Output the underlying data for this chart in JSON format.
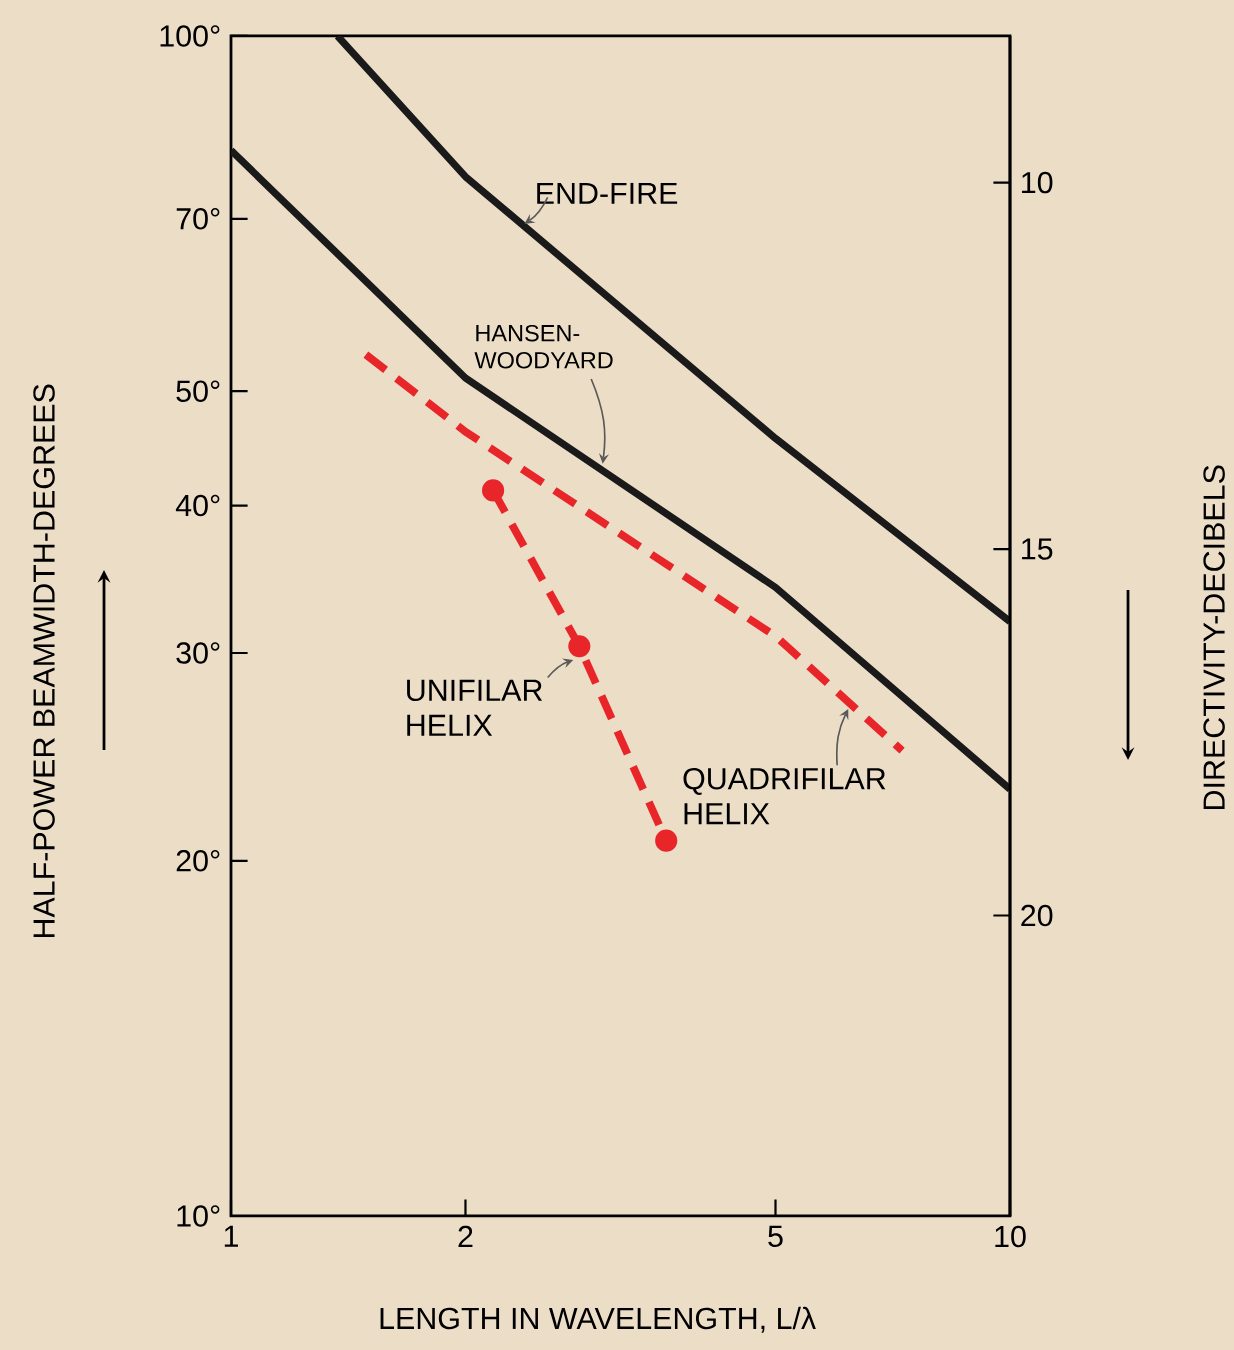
{
  "chart_data": {
    "type": "line",
    "xlabel": "LENGTH IN WAVELENGTH, L/λ",
    "ylabel": "HALF-POWER BEAMWIDTH-DEGREES",
    "y2label": "DIRECTIVITY-DECIBELS",
    "log": "xy",
    "xlim": [
      1,
      10
    ],
    "ylim": [
      10,
      100
    ],
    "xticks": [
      1,
      2,
      5,
      10
    ],
    "yticks": [
      {
        "value": 10,
        "label": "10°"
      },
      {
        "value": 20,
        "label": "20°"
      },
      {
        "value": 30,
        "label": "30°"
      },
      {
        "value": 40,
        "label": "40°"
      },
      {
        "value": 50,
        "label": "50°"
      },
      {
        "value": 70,
        "label": "70°"
      },
      {
        "value": 100,
        "label": "100°"
      }
    ],
    "y2lim": [
      24.1,
      8.0
    ],
    "y2ticks": [
      10,
      15,
      20
    ],
    "grid": false,
    "series": [
      {
        "name": "END-FIRE",
        "color": "#1a1a1a",
        "x": [
          1.37,
          2,
          5,
          10
        ],
        "values": [
          100,
          76,
          45.6,
          31.9
        ],
        "line_style": "solid",
        "marker": "none"
      },
      {
        "name": "HANSEN-WOODYARD",
        "color": "#1a1a1a",
        "x": [
          1,
          2,
          5,
          10
        ],
        "values": [
          80,
          51.3,
          34.1,
          23
        ],
        "line_style": "solid",
        "marker": "none"
      },
      {
        "name": "QUADRIFILAR HELIX",
        "color": "#e8262a",
        "x": [
          1.49,
          2,
          5,
          7.27
        ],
        "values": [
          53.7,
          46.2,
          31,
          24.8
        ],
        "line_style": "dashed",
        "marker": "none"
      },
      {
        "name": "UNIFILAR HELIX",
        "color": "#e8262a",
        "x": [
          2.17,
          2.8,
          3.62
        ],
        "values": [
          41.2,
          30.4,
          20.8
        ],
        "line_style": "dashed",
        "marker": "circle"
      }
    ]
  }
}
